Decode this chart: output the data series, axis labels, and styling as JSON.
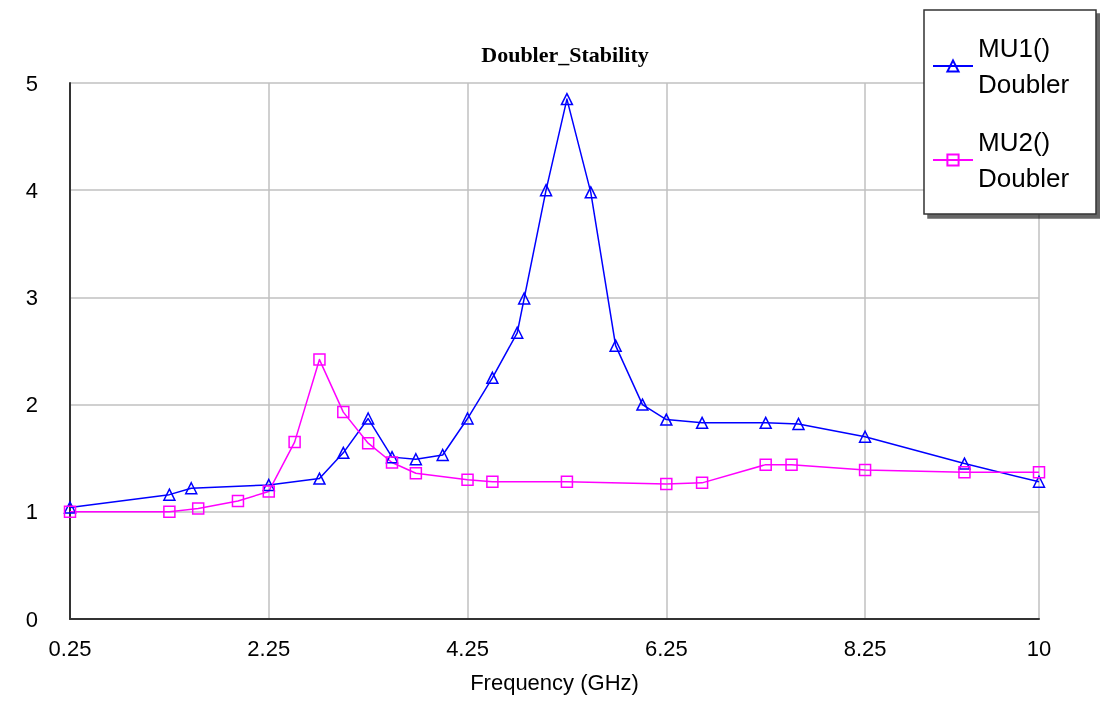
{
  "chart_data": {
    "type": "line",
    "title": "Doubler_Stability",
    "xlabel": "Frequency (GHz)",
    "xlim": [
      0.25,
      10
    ],
    "xticks": [
      0.25,
      2.25,
      4.25,
      6.25,
      8.25,
      10
    ],
    "ylim": [
      0,
      5
    ],
    "yticks": [
      0,
      1,
      2,
      3,
      4,
      5
    ],
    "grid": true,
    "legend": "top right",
    "series": [
      {
        "name": "MU1() Doubler",
        "color": "#0000ff",
        "marker": "triangle",
        "x": [
          0.25,
          1.25,
          1.47,
          2.25,
          2.76,
          3.0,
          3.25,
          3.49,
          3.73,
          4.0,
          4.25,
          4.5,
          4.75,
          4.82,
          5.04,
          5.25,
          5.49,
          5.74,
          6.01,
          6.25,
          6.61,
          7.25,
          7.58,
          8.25,
          9.25,
          10
        ],
        "values": [
          1.04,
          1.16,
          1.22,
          1.25,
          1.31,
          1.55,
          1.87,
          1.51,
          1.49,
          1.53,
          1.87,
          2.25,
          2.67,
          2.99,
          4.0,
          4.85,
          3.98,
          2.55,
          2.0,
          1.86,
          1.83,
          1.83,
          1.82,
          1.7,
          1.45,
          1.28
        ]
      },
      {
        "name": "MU2() Doubler",
        "color": "#ff00ff",
        "marker": "square",
        "x": [
          0.25,
          1.25,
          1.54,
          1.94,
          2.25,
          2.51,
          2.76,
          3.0,
          3.25,
          3.49,
          3.73,
          4.25,
          4.5,
          5.25,
          6.25,
          6.61,
          7.25,
          7.51,
          8.25,
          9.25,
          10
        ],
        "values": [
          1.0,
          1.0,
          1.03,
          1.1,
          1.19,
          1.65,
          2.42,
          1.93,
          1.64,
          1.46,
          1.36,
          1.3,
          1.28,
          1.28,
          1.26,
          1.27,
          1.44,
          1.44,
          1.39,
          1.37,
          1.37
        ]
      }
    ]
  }
}
